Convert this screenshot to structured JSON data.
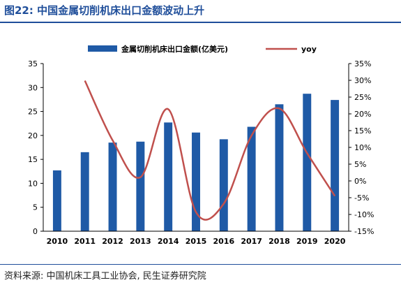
{
  "figure": {
    "title": "图22: 中国金属切削机床出口金额波动上升",
    "source": "资料来源: 中国机床工具工业协会, 民生证券研究院"
  },
  "colors": {
    "accent": "#1f4e9a",
    "bar": "#1f5aa6",
    "line": "#c0504d"
  },
  "chart_data": {
    "type": "bar",
    "categories": [
      "2010",
      "2011",
      "2012",
      "2013",
      "2014",
      "2015",
      "2016",
      "2017",
      "2018",
      "2019",
      "2020"
    ],
    "series": [
      {
        "name": "金属切削机床出口金额(亿美元)",
        "type": "bar",
        "axis": "left",
        "values": [
          12.7,
          16.5,
          18.5,
          18.7,
          22.7,
          20.6,
          19.2,
          21.8,
          26.5,
          28.7,
          27.4
        ]
      },
      {
        "name": "yoy",
        "type": "line",
        "axis": "right",
        "smooth": true,
        "values": [
          null,
          29.9,
          12.1,
          1.1,
          21.4,
          -9.3,
          -6.8,
          13.5,
          21.6,
          8.3,
          -4.5
        ]
      }
    ],
    "yaxis_left": {
      "min": 0,
      "max": 35,
      "ticks": [
        "0",
        "5",
        "10",
        "15",
        "20",
        "25",
        "30",
        "35"
      ]
    },
    "yaxis_right": {
      "min": -15,
      "max": 35,
      "ticks": [
        "-15%",
        "-10%",
        "-5%",
        "0%",
        "5%",
        "10%",
        "15%",
        "20%",
        "25%",
        "30%",
        "35%"
      ]
    },
    "legend_position": "top",
    "grid": false,
    "title": "",
    "xlabel": "",
    "ylabel": ""
  }
}
